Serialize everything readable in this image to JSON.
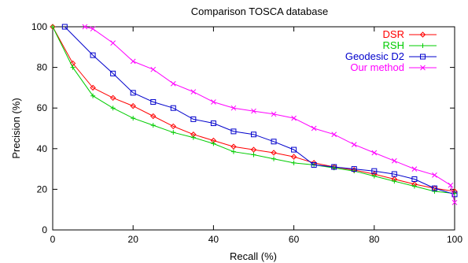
{
  "chart_data": {
    "type": "line",
    "title": "Comparison TOSCA database",
    "xlabel": "Recall (%)",
    "ylabel": "Precision (%)",
    "xlim": [
      0,
      100
    ],
    "ylim": [
      0,
      100
    ],
    "xticks": [
      0,
      20,
      40,
      60,
      80,
      100
    ],
    "yticks": [
      0,
      20,
      40,
      60,
      80,
      100
    ],
    "grid": false,
    "legend_position": "top-right",
    "series": [
      {
        "name": "DSR",
        "color": "#ff0000",
        "marker": "diamond",
        "x": [
          0,
          5,
          10,
          15,
          20,
          25,
          30,
          35,
          40,
          45,
          50,
          55,
          60,
          65,
          70,
          75,
          80,
          85,
          90,
          95,
          100
        ],
        "y": [
          100,
          82,
          70,
          65,
          61,
          56,
          51,
          47,
          44,
          41,
          39.5,
          38,
          36,
          33,
          31,
          29.5,
          27.5,
          25,
          22.5,
          20.5,
          19
        ]
      },
      {
        "name": "RSH",
        "color": "#00cc00",
        "marker": "plus",
        "x": [
          0,
          5,
          10,
          15,
          20,
          25,
          30,
          35,
          40,
          45,
          50,
          55,
          60,
          65,
          70,
          75,
          80,
          85,
          90,
          95,
          100
        ],
        "y": [
          100,
          80,
          66,
          60,
          55,
          51.5,
          48,
          45.5,
          42.5,
          38.5,
          37,
          35,
          33,
          32,
          30.5,
          29,
          26.5,
          24,
          21.5,
          19,
          18
        ]
      },
      {
        "name": "Geodesic D2",
        "color": "#0000cc",
        "marker": "square",
        "x": [
          3,
          10,
          15,
          20,
          25,
          30,
          35,
          40,
          45,
          50,
          55,
          60,
          65,
          70,
          75,
          80,
          85,
          90,
          95,
          100
        ],
        "y": [
          100,
          86,
          77,
          67.5,
          63,
          60,
          54.5,
          52.5,
          48.5,
          47,
          43.5,
          39.5,
          32,
          31,
          30,
          29,
          27.5,
          25,
          20.5,
          17.5
        ]
      },
      {
        "name": "Our method",
        "color": "#ff00ff",
        "marker": "cross",
        "x": [
          8,
          10,
          15,
          20,
          25,
          30,
          35,
          40,
          45,
          50,
          55,
          60,
          65,
          70,
          75,
          80,
          85,
          90,
          95,
          99,
          100
        ],
        "y": [
          100,
          99,
          92,
          83,
          79,
          72,
          68,
          63,
          60,
          58.5,
          57,
          55,
          50,
          47,
          42,
          38,
          34,
          30,
          27,
          22,
          13.5
        ]
      }
    ]
  }
}
